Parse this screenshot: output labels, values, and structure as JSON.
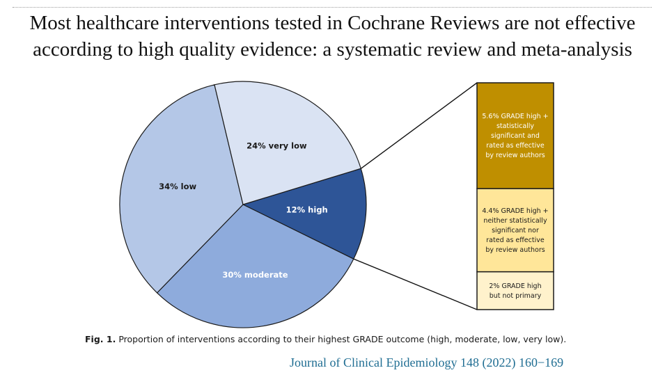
{
  "header": {
    "title_line1": "Most healthcare interventions tested in Cochrane Reviews are not effective",
    "title_line2": "according to high quality evidence: a systematic review and meta-analysis"
  },
  "chart_data": {
    "type": "pie",
    "slices": [
      {
        "label": "12% high",
        "value": 12,
        "color": "#2e5597",
        "text_color": "#ffffff"
      },
      {
        "label": "30% moderate",
        "value": 30,
        "color": "#8eabdc",
        "text_color": "#ffffff"
      },
      {
        "label": "34% low",
        "value": 34,
        "color": "#b4c7e7",
        "text_color": "#1a1a1a"
      },
      {
        "label": "24% very low",
        "value": 24,
        "color": "#dae3f3",
        "text_color": "#1a1a1a"
      }
    ],
    "breakdown_of": "12% high",
    "breakdown": [
      {
        "value": 5.6,
        "color": "#bf8f00",
        "text_color": "#ffffff",
        "lines": [
          "5.6% GRADE high +",
          "statistically",
          "significant and",
          "rated as effective",
          "by review authors"
        ]
      },
      {
        "value": 4.4,
        "color": "#ffe699",
        "text_color": "#1a1a1a",
        "lines": [
          "4.4% GRADE high +",
          "neither statistically",
          "significant nor",
          "rated as effective",
          "by review authors"
        ]
      },
      {
        "value": 2,
        "color": "#fff2cc",
        "text_color": "#1a1a1a",
        "lines": [
          "2% GRADE high",
          "but not primary"
        ]
      }
    ]
  },
  "caption": {
    "label": "Fig. 1.",
    "text": "Proportion of interventions according to their highest GRADE outcome (high, moderate, low, very low)."
  },
  "citation": "Journal of Clinical Epidemiology 148 (2022) 160−169"
}
